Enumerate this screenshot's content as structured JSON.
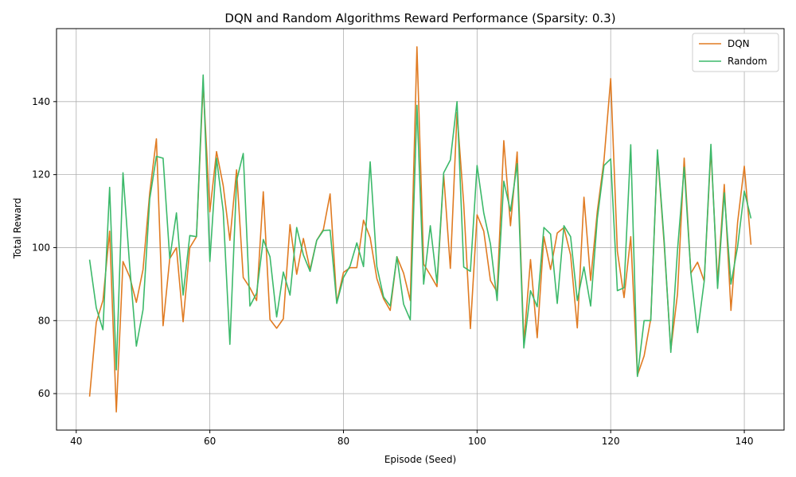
{
  "colors": {
    "dqn": "#e07b22",
    "random": "#3cb96a",
    "grid": "#b0b0b0",
    "axis": "#000000"
  },
  "chart_data": {
    "type": "line",
    "title": "DQN and Random Algorithms Reward Performance (Sparsity: 0.3)",
    "xlabel": "Episode (Seed)",
    "ylabel": "Total Reward",
    "xlim": [
      37.05,
      145.95
    ],
    "ylim": [
      50,
      160
    ],
    "xticks": [
      40,
      60,
      80,
      100,
      120,
      140
    ],
    "yticks": [
      60,
      80,
      100,
      120,
      140
    ],
    "grid": true,
    "legend_position": "top-right",
    "x_start": 42,
    "series": [
      {
        "name": "DQN",
        "color": "#e07b22",
        "values": [
          59.2,
          79.5,
          85.5,
          104.5,
          55.0,
          96.2,
          92.0,
          85.0,
          94.0,
          115.0,
          129.8,
          78.6,
          97.0,
          100.0,
          79.7,
          100.0,
          103.0,
          145.0,
          109.8,
          126.3,
          117.0,
          102.0,
          121.3,
          91.8,
          89.0,
          85.5,
          115.3,
          80.3,
          77.9,
          80.5,
          106.3,
          92.7,
          102.5,
          94.0,
          102.0,
          105.0,
          114.7,
          85.0,
          93.2,
          94.5,
          94.5,
          107.5,
          102.7,
          91.5,
          86.0,
          82.8,
          97.5,
          93.0,
          85.5,
          155.0,
          95.5,
          92.5,
          89.3,
          120.0,
          94.3,
          137.0,
          112.0,
          77.8,
          109.0,
          104.5,
          91.0,
          87.8,
          129.3,
          106.0,
          126.2,
          74.0,
          96.7,
          75.3,
          103.0,
          94.0,
          104.0,
          105.5,
          98.0,
          78.0,
          113.8,
          91.0,
          110.0,
          124.0,
          146.3,
          99.0,
          86.3,
          103.0,
          65.0,
          70.3,
          80.5,
          126.0,
          101.0,
          72.0,
          87.3,
          124.5,
          93.0,
          96.0,
          90.8,
          127.0,
          90.5,
          117.3,
          82.8,
          107.0,
          122.3,
          100.8
        ]
      },
      {
        "name": "Random",
        "color": "#3cb96a",
        "values": [
          96.7,
          83.5,
          77.5,
          116.5,
          66.5,
          120.5,
          95.0,
          73.0,
          83.0,
          113.3,
          125.0,
          124.5,
          97.0,
          109.5,
          87.0,
          103.3,
          103.0,
          147.3,
          96.2,
          124.5,
          110.0,
          73.5,
          118.3,
          125.8,
          84.0,
          87.5,
          102.2,
          97.5,
          81.0,
          93.3,
          87.0,
          105.5,
          98.0,
          93.5,
          102.0,
          104.7,
          104.8,
          84.7,
          91.8,
          95.0,
          101.3,
          94.8,
          123.5,
          94.8,
          86.5,
          84.0,
          97.5,
          84.5,
          80.2,
          139.0,
          90.0,
          106.0,
          90.3,
          120.5,
          124.0,
          140.0,
          94.7,
          93.5,
          122.5,
          109.5,
          101.0,
          85.5,
          118.2,
          110.0,
          123.0,
          72.5,
          88.2,
          83.8,
          105.5,
          103.7,
          84.7,
          106.0,
          103.0,
          85.5,
          94.7,
          84.0,
          108.0,
          122.5,
          124.3,
          88.2,
          89.0,
          128.2,
          64.7,
          80.0,
          80.0,
          126.8,
          102.0,
          71.3,
          99.3,
          122.0,
          93.0,
          76.7,
          90.8,
          128.3,
          88.8,
          115.0,
          90.0,
          100.3,
          115.5,
          108.0
        ]
      }
    ]
  }
}
